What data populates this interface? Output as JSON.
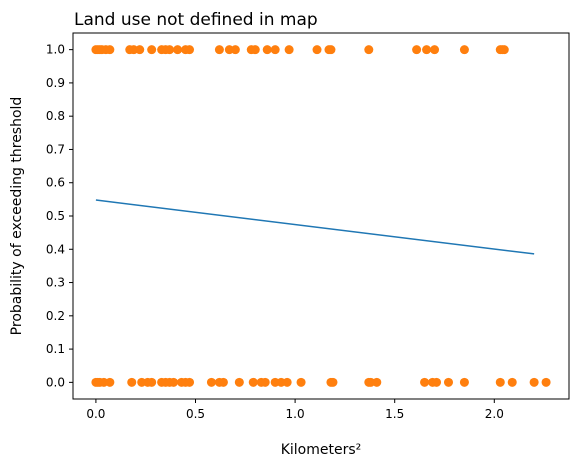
{
  "chart_data": {
    "type": "scatter",
    "title": "Land use not defined in map",
    "xlabel": "Kilometers²",
    "ylabel": "Probability of exceeding threshold",
    "xlim": [
      -0.115,
      2.375
    ],
    "ylim": [
      -0.05,
      1.05
    ],
    "grid": false,
    "colors": {
      "points": "#ff7f0e",
      "line": "#1f77b4",
      "axis": "#000000"
    },
    "x_ticks": [
      {
        "value": 0.0,
        "label": "0.0"
      },
      {
        "value": 0.5,
        "label": "0.5"
      },
      {
        "value": 1.0,
        "label": "1.0"
      },
      {
        "value": 1.5,
        "label": "1.5"
      },
      {
        "value": 2.0,
        "label": "2.0"
      }
    ],
    "y_ticks": [
      {
        "value": 0.0,
        "label": "0.0"
      },
      {
        "value": 0.1,
        "label": "0.1"
      },
      {
        "value": 0.2,
        "label": "0.2"
      },
      {
        "value": 0.3,
        "label": "0.3"
      },
      {
        "value": 0.4,
        "label": "0.4"
      },
      {
        "value": 0.5,
        "label": "0.5"
      },
      {
        "value": 0.6,
        "label": "0.6"
      },
      {
        "value": 0.7,
        "label": "0.7"
      },
      {
        "value": 0.8,
        "label": "0.8"
      },
      {
        "value": 0.9,
        "label": "0.9"
      },
      {
        "value": 1.0,
        "label": "1.0"
      }
    ],
    "points": {
      "x": [
        0.0,
        0.01,
        0.02,
        0.03,
        0.05,
        0.07,
        0.17,
        0.19,
        0.22,
        0.28,
        0.33,
        0.35,
        0.37,
        0.41,
        0.45,
        0.47,
        0.62,
        0.67,
        0.7,
        0.78,
        0.8,
        0.86,
        0.9,
        0.97,
        1.11,
        1.17,
        1.18,
        1.37,
        1.61,
        1.66,
        1.7,
        1.85,
        2.03,
        2.04,
        2.05,
        0.0,
        0.01,
        0.02,
        0.04,
        0.07,
        0.18,
        0.23,
        0.26,
        0.28,
        0.33,
        0.35,
        0.37,
        0.39,
        0.43,
        0.45,
        0.47,
        0.58,
        0.62,
        0.64,
        0.72,
        0.79,
        0.83,
        0.85,
        0.9,
        0.93,
        0.96,
        1.03,
        1.18,
        1.19,
        1.37,
        1.38,
        1.41,
        1.65,
        1.69,
        1.71,
        1.77,
        1.85,
        2.03,
        2.09,
        2.2,
        2.26
      ],
      "y": [
        1,
        1,
        1,
        1,
        1,
        1,
        1,
        1,
        1,
        1,
        1,
        1,
        1,
        1,
        1,
        1,
        1,
        1,
        1,
        1,
        1,
        1,
        1,
        1,
        1,
        1,
        1,
        1,
        1,
        1,
        1,
        1,
        1,
        1,
        1,
        0,
        0,
        0,
        0,
        0,
        0,
        0,
        0,
        0,
        0,
        0,
        0,
        0,
        0,
        0,
        0,
        0,
        0,
        0,
        0,
        0,
        0,
        0,
        0,
        0,
        0,
        0,
        0,
        0,
        0,
        0,
        0,
        0,
        0,
        0,
        0,
        0,
        0,
        0,
        0,
        0
      ]
    },
    "fit_line": {
      "x": [
        0.0,
        2.2
      ],
      "y": [
        0.548,
        0.386
      ]
    }
  }
}
